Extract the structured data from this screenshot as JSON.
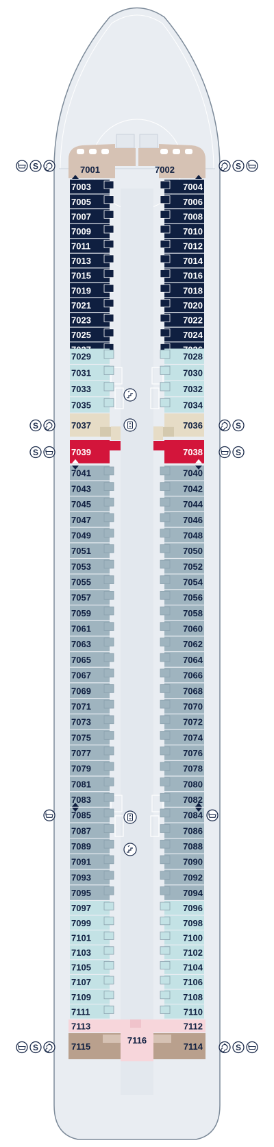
{
  "deck": {
    "colors": {
      "hull": "#e9edf2",
      "outline": "#7c8a99",
      "navy": "#0f1f40",
      "aqua": "#c3e2e5",
      "steel": "#9fb4bf",
      "beige": "#e6dcc6",
      "red": "#d3153b",
      "pink": "#f7d6db",
      "taupe": "#b9a08d",
      "sand": "#d6c2b4",
      "icon": "#1a2a4a"
    },
    "left_cabins": [
      {
        "id": "7001",
        "label": "7001",
        "style": "sand",
        "marker": "up"
      },
      {
        "id": "7003",
        "label": "7003",
        "style": "navy",
        "marker": "down"
      },
      {
        "id": "7005",
        "label": "7005",
        "style": "navy"
      },
      {
        "id": "7007",
        "label": "7007",
        "style": "navy"
      },
      {
        "id": "7009",
        "label": "7009",
        "style": "navy"
      },
      {
        "id": "7011",
        "label": "7011",
        "style": "navy"
      },
      {
        "id": "7013",
        "label": "7013",
        "style": "navy"
      },
      {
        "id": "7015",
        "label": "7015",
        "style": "navy"
      },
      {
        "id": "7019",
        "label": "7019",
        "style": "navy"
      },
      {
        "id": "7021",
        "label": "7021",
        "style": "navy"
      },
      {
        "id": "7023",
        "label": "7023",
        "style": "navy"
      },
      {
        "id": "7025",
        "label": "7025",
        "style": "navy"
      },
      {
        "id": "7027",
        "label": "7027",
        "style": "navy"
      },
      {
        "id": "7029",
        "label": "7029",
        "style": "aqua"
      },
      {
        "id": "7031",
        "label": "7031",
        "style": "aqua"
      },
      {
        "id": "7033",
        "label": "7033",
        "style": "aqua"
      },
      {
        "id": "7035",
        "label": "7035",
        "style": "aqua"
      },
      {
        "id": "7037",
        "label": "7037",
        "style": "beige"
      },
      {
        "id": "7039",
        "label": "7039",
        "style": "red",
        "marker": "up"
      },
      {
        "id": "7041",
        "label": "7041",
        "style": "steel",
        "marker": "down"
      },
      {
        "id": "7043",
        "label": "7043",
        "style": "steel"
      },
      {
        "id": "7045",
        "label": "7045",
        "style": "steel"
      },
      {
        "id": "7047",
        "label": "7047",
        "style": "steel"
      },
      {
        "id": "7049",
        "label": "7049",
        "style": "steel"
      },
      {
        "id": "7051",
        "label": "7051",
        "style": "steel"
      },
      {
        "id": "7053",
        "label": "7053",
        "style": "steel"
      },
      {
        "id": "7055",
        "label": "7055",
        "style": "steel"
      },
      {
        "id": "7057",
        "label": "7057",
        "style": "steel"
      },
      {
        "id": "7059",
        "label": "7059",
        "style": "steel"
      },
      {
        "id": "7061",
        "label": "7061",
        "style": "steel"
      },
      {
        "id": "7063",
        "label": "7063",
        "style": "steel"
      },
      {
        "id": "7065",
        "label": "7065",
        "style": "steel"
      },
      {
        "id": "7067",
        "label": "7067",
        "style": "steel"
      },
      {
        "id": "7069",
        "label": "7069",
        "style": "steel"
      },
      {
        "id": "7071",
        "label": "7071",
        "style": "steel"
      },
      {
        "id": "7073",
        "label": "7073",
        "style": "steel"
      },
      {
        "id": "7075",
        "label": "7075",
        "style": "steel"
      },
      {
        "id": "7077",
        "label": "7077",
        "style": "steel"
      },
      {
        "id": "7079",
        "label": "7079",
        "style": "steel"
      },
      {
        "id": "7081",
        "label": "7081",
        "style": "steel"
      },
      {
        "id": "7083",
        "label": "7083",
        "style": "steel",
        "marker": "up"
      },
      {
        "id": "7085",
        "label": "7085",
        "style": "steel",
        "marker": "down"
      },
      {
        "id": "7087",
        "label": "7087",
        "style": "steel"
      },
      {
        "id": "7089",
        "label": "7089",
        "style": "steel"
      },
      {
        "id": "7091",
        "label": "7091",
        "style": "steel"
      },
      {
        "id": "7093",
        "label": "7093",
        "style": "steel"
      },
      {
        "id": "7095",
        "label": "7095",
        "style": "steel"
      },
      {
        "id": "7097",
        "label": "7097",
        "style": "aqua"
      },
      {
        "id": "7099",
        "label": "7099",
        "style": "aqua"
      },
      {
        "id": "7101",
        "label": "7101",
        "style": "aqua"
      },
      {
        "id": "7103",
        "label": "7103",
        "style": "aqua"
      },
      {
        "id": "7105",
        "label": "7105",
        "style": "aqua"
      },
      {
        "id": "7107",
        "label": "7107",
        "style": "aqua"
      },
      {
        "id": "7109",
        "label": "7109",
        "style": "aqua"
      },
      {
        "id": "7111",
        "label": "7111",
        "style": "aqua"
      },
      {
        "id": "7113",
        "label": "7113",
        "style": "pink"
      },
      {
        "id": "7115",
        "label": "7115",
        "style": "taupe"
      }
    ],
    "right_cabins": [
      {
        "id": "7002",
        "label": "7002",
        "style": "sand",
        "marker": "up"
      },
      {
        "id": "7004",
        "label": "7004",
        "style": "navy",
        "marker": "down"
      },
      {
        "id": "7006",
        "label": "7006",
        "style": "navy"
      },
      {
        "id": "7008",
        "label": "7008",
        "style": "navy"
      },
      {
        "id": "7010",
        "label": "7010",
        "style": "navy"
      },
      {
        "id": "7012",
        "label": "7012",
        "style": "navy"
      },
      {
        "id": "7014",
        "label": "7014",
        "style": "navy"
      },
      {
        "id": "7016",
        "label": "7016",
        "style": "navy"
      },
      {
        "id": "7018",
        "label": "7018",
        "style": "navy"
      },
      {
        "id": "7020",
        "label": "7020",
        "style": "navy"
      },
      {
        "id": "7022",
        "label": "7022",
        "style": "navy"
      },
      {
        "id": "7024",
        "label": "7024",
        "style": "navy"
      },
      {
        "id": "7026",
        "label": "7026",
        "style": "navy"
      },
      {
        "id": "7028",
        "label": "7028",
        "style": "aqua"
      },
      {
        "id": "7030",
        "label": "7030",
        "style": "aqua"
      },
      {
        "id": "7032",
        "label": "7032",
        "style": "aqua"
      },
      {
        "id": "7034",
        "label": "7034",
        "style": "aqua"
      },
      {
        "id": "7036",
        "label": "7036",
        "style": "beige"
      },
      {
        "id": "7038",
        "label": "7038",
        "style": "red",
        "marker": "up"
      },
      {
        "id": "7040",
        "label": "7040",
        "style": "steel",
        "marker": "down"
      },
      {
        "id": "7042",
        "label": "7042",
        "style": "steel"
      },
      {
        "id": "7044",
        "label": "7044",
        "style": "steel"
      },
      {
        "id": "7046",
        "label": "7046",
        "style": "steel"
      },
      {
        "id": "7048",
        "label": "7048",
        "style": "steel"
      },
      {
        "id": "7050",
        "label": "7050",
        "style": "steel"
      },
      {
        "id": "7052",
        "label": "7052",
        "style": "steel"
      },
      {
        "id": "7054",
        "label": "7054",
        "style": "steel"
      },
      {
        "id": "7056",
        "label": "7056",
        "style": "steel"
      },
      {
        "id": "7058",
        "label": "7058",
        "style": "steel"
      },
      {
        "id": "7060",
        "label": "7060",
        "style": "steel"
      },
      {
        "id": "7062",
        "label": "7062",
        "style": "steel"
      },
      {
        "id": "7064",
        "label": "7064",
        "style": "steel"
      },
      {
        "id": "7066",
        "label": "7066",
        "style": "steel"
      },
      {
        "id": "7068",
        "label": "7068",
        "style": "steel"
      },
      {
        "id": "7070",
        "label": "7070",
        "style": "steel"
      },
      {
        "id": "7072",
        "label": "7072",
        "style": "steel"
      },
      {
        "id": "7074",
        "label": "7074",
        "style": "steel"
      },
      {
        "id": "7076",
        "label": "7076",
        "style": "steel"
      },
      {
        "id": "7078",
        "label": "7078",
        "style": "steel"
      },
      {
        "id": "7080",
        "label": "7080",
        "style": "steel"
      },
      {
        "id": "7082",
        "label": "7082",
        "style": "steel",
        "marker": "up"
      },
      {
        "id": "7084",
        "label": "7084",
        "style": "steel",
        "marker": "down"
      },
      {
        "id": "7086",
        "label": "7086",
        "style": "steel"
      },
      {
        "id": "7088",
        "label": "7088",
        "style": "steel"
      },
      {
        "id": "7090",
        "label": "7090",
        "style": "steel"
      },
      {
        "id": "7092",
        "label": "7092",
        "style": "steel"
      },
      {
        "id": "7094",
        "label": "7094",
        "style": "steel"
      },
      {
        "id": "7096",
        "label": "7096",
        "style": "aqua"
      },
      {
        "id": "7098",
        "label": "7098",
        "style": "aqua"
      },
      {
        "id": "7100",
        "label": "7100",
        "style": "aqua"
      },
      {
        "id": "7102",
        "label": "7102",
        "style": "aqua"
      },
      {
        "id": "7104",
        "label": "7104",
        "style": "aqua"
      },
      {
        "id": "7106",
        "label": "7106",
        "style": "aqua"
      },
      {
        "id": "7108",
        "label": "7108",
        "style": "aqua"
      },
      {
        "id": "7110",
        "label": "7110",
        "style": "aqua"
      },
      {
        "id": "7112",
        "label": "7112",
        "style": "pink"
      },
      {
        "id": "7114",
        "label": "7114",
        "style": "taupe"
      }
    ],
    "center_cabin": {
      "id": "7116",
      "label": "7116",
      "style": "pink"
    },
    "amenity_groups": [
      {
        "side": "left",
        "cabin": "7001",
        "icons": [
          "bathtub-icon",
          "sofa-bed-icon",
          "whirlpool-icon"
        ]
      },
      {
        "side": "right",
        "cabin": "7002",
        "icons": [
          "whirlpool-icon",
          "sofa-bed-icon",
          "bathtub-icon"
        ]
      },
      {
        "side": "left",
        "cabin": "7037",
        "icons": [
          "sofa-bed-icon",
          "whirlpool-icon"
        ]
      },
      {
        "side": "right",
        "cabin": "7036",
        "icons": [
          "whirlpool-icon",
          "sofa-bed-icon"
        ]
      },
      {
        "side": "left",
        "cabin": "7039",
        "icons": [
          "sofa-bed-icon",
          "bathtub-icon"
        ]
      },
      {
        "side": "right",
        "cabin": "7038",
        "icons": [
          "bathtub-icon",
          "sofa-bed-icon"
        ]
      },
      {
        "side": "left",
        "cabin": "7085",
        "icons": [
          "bathtub-icon"
        ]
      },
      {
        "side": "right",
        "cabin": "7084",
        "icons": [
          "bathtub-icon"
        ]
      },
      {
        "side": "left",
        "cabin": "7115",
        "icons": [
          "bathtub-icon",
          "sofa-bed-icon",
          "whirlpool-icon"
        ]
      },
      {
        "side": "right",
        "cabin": "7114",
        "icons": [
          "whirlpool-icon",
          "sofa-bed-icon",
          "bathtub-icon"
        ]
      }
    ],
    "icon_glyphs": {
      "sofa-bed-icon": "S"
    },
    "features": [
      "stairs-icon",
      "elevator-icon"
    ]
  }
}
